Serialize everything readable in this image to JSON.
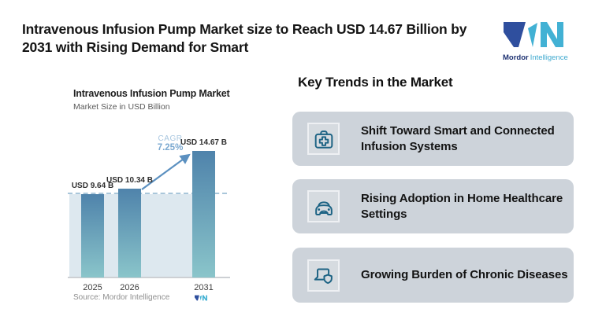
{
  "header": {
    "title_line1": "Intravenous Infusion Pump Market size to Reach USD 14.67 Billion by",
    "title_line2": "2031 with Rising Demand for Smart",
    "brand": {
      "name": "Mordor",
      "suffix": "Intelligence"
    }
  },
  "chart_data": {
    "type": "bar",
    "title": "Intravenous Infusion Pump Market",
    "subtitle": "Market Size in USD Billion",
    "categories": [
      "2025",
      "2026",
      "2031"
    ],
    "values": [
      9.64,
      10.34,
      14.67
    ],
    "bar_labels": [
      "USD 9.64 B",
      "USD 10.34 B",
      "USD 14.67 B"
    ],
    "ylabel": "USD Billion",
    "ylim": [
      0,
      14.67
    ],
    "grid": false,
    "reference_line_value": 9.64,
    "cagr_label": "CAGR",
    "cagr_value": "7.25%",
    "source": "Source: Mordor Intelligence"
  },
  "trends": {
    "heading": "Key Trends in the Market",
    "items": [
      {
        "icon": "first-aid-kit-icon",
        "label": "Shift Toward Smart and Connected Infusion Systems"
      },
      {
        "icon": "car-icon",
        "label": "Rising Adoption in Home Healthcare Settings"
      },
      {
        "icon": "laptop-shield-icon",
        "label": "Growing Burden of Chronic Diseases"
      }
    ]
  },
  "colors": {
    "bar_top": "#4f83ab",
    "bar_bottom": "#8ac5ca",
    "shade": "#dde8ef",
    "dashed": "#a9c6da",
    "arrow": "#5b90c0",
    "cagr_light": "#a9c7e0",
    "cagr_dark": "#7aa8d0",
    "card_bg": "#cdd3da",
    "icon": "#1d6384",
    "brand_dark": "#2f4f9e",
    "brand_cyan": "#42b1d4",
    "brand_text_dark": "#1e3272",
    "brand_text_light": "#3fa9cf"
  }
}
